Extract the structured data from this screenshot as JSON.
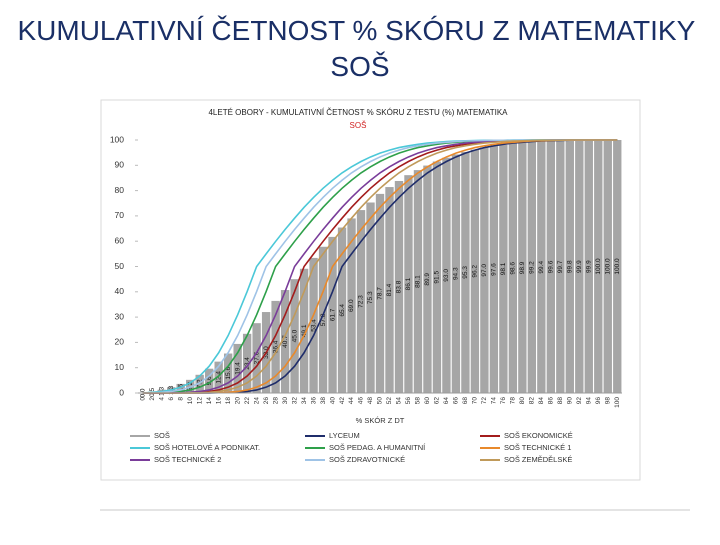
{
  "title": "KUMULATIVNÍ ČETNOST % SKÓRU Z MATEMATIKY SOŠ",
  "chart_data": {
    "type": "combo",
    "title": "4LETÉ OBORY - KUMULATIVNÍ ČETNOST % SKÓRU Z TESTU (%) MATEMATIKA",
    "subtitle": "SOŠ",
    "x_label": "% SKÓR Z DT",
    "categories": [
      0,
      2,
      4,
      6,
      8,
      10,
      12,
      14,
      16,
      18,
      20,
      22,
      24,
      26,
      28,
      30,
      32,
      34,
      36,
      38,
      40,
      42,
      44,
      46,
      48,
      50,
      52,
      54,
      56,
      58,
      60,
      62,
      64,
      66,
      68,
      70,
      72,
      74,
      76,
      78,
      80,
      82,
      84,
      86,
      88,
      90,
      92,
      94,
      96,
      98,
      100
    ],
    "ylim": [
      0,
      100
    ],
    "yticks": [
      0,
      10,
      20,
      30,
      40,
      50,
      60,
      70,
      80,
      90,
      100
    ],
    "grid": false,
    "series": [
      {
        "name": "SOŠ",
        "type": "bar",
        "color": "#a6a6a6",
        "values": [
          0.0,
          0.5,
          1.3,
          2.3,
          3.6,
          5.2,
          7.2,
          9.6,
          12.4,
          15.6,
          19.4,
          23.4,
          27.6,
          32.0,
          36.4,
          40.7,
          45.0,
          49.1,
          53.4,
          57.8,
          61.7,
          65.4,
          69.0,
          72.3,
          75.3,
          78.7,
          81.4,
          83.8,
          86.1,
          88.1,
          89.9,
          91.5,
          93.0,
          94.3,
          95.3,
          96.2,
          97.0,
          97.6,
          98.1,
          98.6,
          98.9,
          99.2,
          99.4,
          99.6,
          99.7,
          99.8,
          99.9,
          99.9,
          100.0,
          100.0,
          100.0
        ],
        "value_labels": [
          "0.0",
          "0.5",
          "1.3",
          "2.3",
          "3.6",
          "5.2",
          "7.2",
          "9.6",
          "12.4",
          "15.6",
          "19.4",
          "23.4",
          "27.6",
          "32.0",
          "36.4",
          "40.7",
          "45.0",
          "49.1",
          "53.4",
          "57.8",
          "61.7",
          "65.4",
          "69.0",
          "72.3",
          "75.3",
          "78.7",
          "81.4",
          "83.8",
          "86.1",
          "88.1",
          "89.9",
          "91.5",
          "93.0",
          "94.3",
          "95.3",
          "96.2",
          "97.0",
          "97.6",
          "98.1",
          "98.6",
          "98.9",
          "99.2",
          "99.4",
          "99.6",
          "99.7",
          "99.8",
          "99.9",
          "99.9",
          "100.0",
          "100.0",
          "100.0"
        ]
      },
      {
        "name": "LYCEUM",
        "type": "line",
        "color": "#1f2d6b",
        "values": [
          0,
          0,
          0,
          0,
          0,
          0,
          0,
          0,
          0.1,
          0.1,
          0.3,
          0.6,
          1.2,
          2.3,
          4,
          6.7,
          10.6,
          15.9,
          22.7,
          30.9,
          40.1,
          50,
          55,
          59.9,
          64.6,
          69.1,
          73.4,
          77.3,
          80.9,
          84.1,
          87,
          89.4,
          91.5,
          93.3,
          94.8,
          96,
          97,
          97.7,
          98.3,
          98.8,
          99.1,
          99.4,
          99.6,
          99.7,
          99.8,
          99.9,
          99.9,
          99.9,
          100,
          100,
          100
        ]
      },
      {
        "name": "SOŠ EKONOMICKÉ",
        "type": "line",
        "color": "#a31c1c",
        "values": [
          0,
          0,
          0,
          0,
          0.1,
          0.1,
          0.3,
          0.6,
          1.2,
          2.3,
          4,
          6.7,
          10.6,
          15.9,
          22.7,
          30.9,
          40.1,
          50,
          55,
          59.9,
          64.6,
          69.1,
          73.4,
          77.3,
          80.9,
          84.1,
          87,
          89.4,
          91.5,
          93.3,
          94.8,
          96,
          97,
          97.7,
          98.3,
          98.8,
          99.1,
          99.4,
          99.6,
          99.7,
          99.8,
          99.9,
          99.9,
          99.9,
          100,
          100,
          100,
          100,
          100,
          100,
          100
        ]
      },
      {
        "name": "SOŠ HOTELOVÉ A PODNIKAT.",
        "type": "line",
        "color": "#4bc8d8",
        "values": [
          0,
          0.3,
          0.6,
          1.2,
          2.3,
          4,
          6.7,
          10.6,
          15.9,
          22.7,
          30.9,
          40.1,
          50,
          55,
          59.9,
          64.6,
          69.1,
          73.4,
          77.3,
          80.9,
          84.1,
          87,
          89.4,
          91.5,
          93.3,
          94.8,
          96,
          97,
          97.7,
          98.3,
          98.8,
          99.1,
          99.4,
          99.6,
          99.7,
          99.8,
          99.9,
          99.9,
          99.9,
          100,
          100,
          100,
          100,
          100,
          100,
          100,
          100,
          100,
          100,
          100,
          100
        ]
      },
      {
        "name": "SOŠ PEDAG. A HUMANITNÍ",
        "type": "line",
        "color": "#2ea04a",
        "values": [
          0,
          0.1,
          0.1,
          0.3,
          0.6,
          1.2,
          2.3,
          4,
          6.7,
          10.6,
          15.9,
          22.7,
          30.9,
          40.1,
          50,
          55,
          59.9,
          64.6,
          69.1,
          73.4,
          77.3,
          80.9,
          84.1,
          87,
          89.4,
          91.5,
          93.3,
          94.8,
          96,
          97,
          97.7,
          98.3,
          98.8,
          99.1,
          99.4,
          99.6,
          99.7,
          99.8,
          99.9,
          99.9,
          99.9,
          100,
          100,
          100,
          100,
          100,
          100,
          100,
          100,
          100,
          100
        ]
      },
      {
        "name": "SOŠ TECHNICKÉ 1",
        "type": "line",
        "color": "#e8892b",
        "values": [
          0,
          0,
          0,
          0,
          0,
          0,
          0,
          0.1,
          0.1,
          0.3,
          0.6,
          1.2,
          2.3,
          4,
          6.7,
          10.6,
          15.9,
          22.7,
          30.9,
          40.1,
          50,
          55,
          59.9,
          64.6,
          69.1,
          73.4,
          77.3,
          80.9,
          84.1,
          87,
          89.4,
          91.5,
          93.3,
          94.8,
          96,
          97,
          97.7,
          98.3,
          98.8,
          99.1,
          99.4,
          99.6,
          99.7,
          99.8,
          99.9,
          99.9,
          99.9,
          100,
          100,
          100,
          100
        ]
      },
      {
        "name": "SOŠ TECHNICKÉ 2",
        "type": "line",
        "color": "#7a3d9a",
        "values": [
          0,
          0,
          0,
          0.1,
          0.1,
          0.3,
          0.6,
          1.2,
          2.3,
          4,
          6.7,
          10.6,
          15.9,
          22.7,
          30.9,
          40.1,
          50,
          55,
          59.9,
          64.6,
          69.1,
          73.4,
          77.3,
          80.9,
          84.1,
          87,
          89.4,
          91.5,
          93.3,
          94.8,
          96,
          97,
          97.7,
          98.3,
          98.8,
          99.1,
          99.4,
          99.6,
          99.7,
          99.8,
          99.9,
          99.9,
          99.9,
          100,
          100,
          100,
          100,
          100,
          100,
          100,
          100
        ]
      },
      {
        "name": "SOŠ ZDRAVOTNICKÉ",
        "type": "line",
        "color": "#9fc3e6",
        "values": [
          0,
          0.1,
          0.3,
          0.6,
          1.2,
          2.3,
          4,
          6.7,
          10.6,
          15.9,
          22.7,
          30.9,
          40.1,
          50,
          55,
          59.9,
          64.6,
          69.1,
          73.4,
          77.3,
          80.9,
          84.1,
          87,
          89.4,
          91.5,
          93.3,
          94.8,
          96,
          97,
          97.7,
          98.3,
          98.8,
          99.1,
          99.4,
          99.6,
          99.7,
          99.8,
          99.9,
          99.9,
          99.9,
          100,
          100,
          100,
          100,
          100,
          100,
          100,
          100,
          100,
          100,
          100
        ]
      },
      {
        "name": "SOŠ ZEMĚDĚLSKÉ",
        "type": "line",
        "color": "#c09a5a",
        "values": [
          0,
          0,
          0,
          0,
          0,
          0.1,
          0.1,
          0.3,
          0.6,
          1.2,
          2.3,
          4,
          6.7,
          10.6,
          15.9,
          22.7,
          30.9,
          40.1,
          50,
          55,
          59.9,
          64.6,
          69.1,
          73.4,
          77.3,
          80.9,
          84.1,
          87,
          89.4,
          91.5,
          93.3,
          94.8,
          96,
          97,
          97.7,
          98.3,
          98.8,
          99.1,
          99.4,
          99.6,
          99.7,
          99.8,
          99.9,
          99.9,
          99.9,
          100,
          100,
          100,
          100,
          100,
          100
        ]
      }
    ]
  }
}
